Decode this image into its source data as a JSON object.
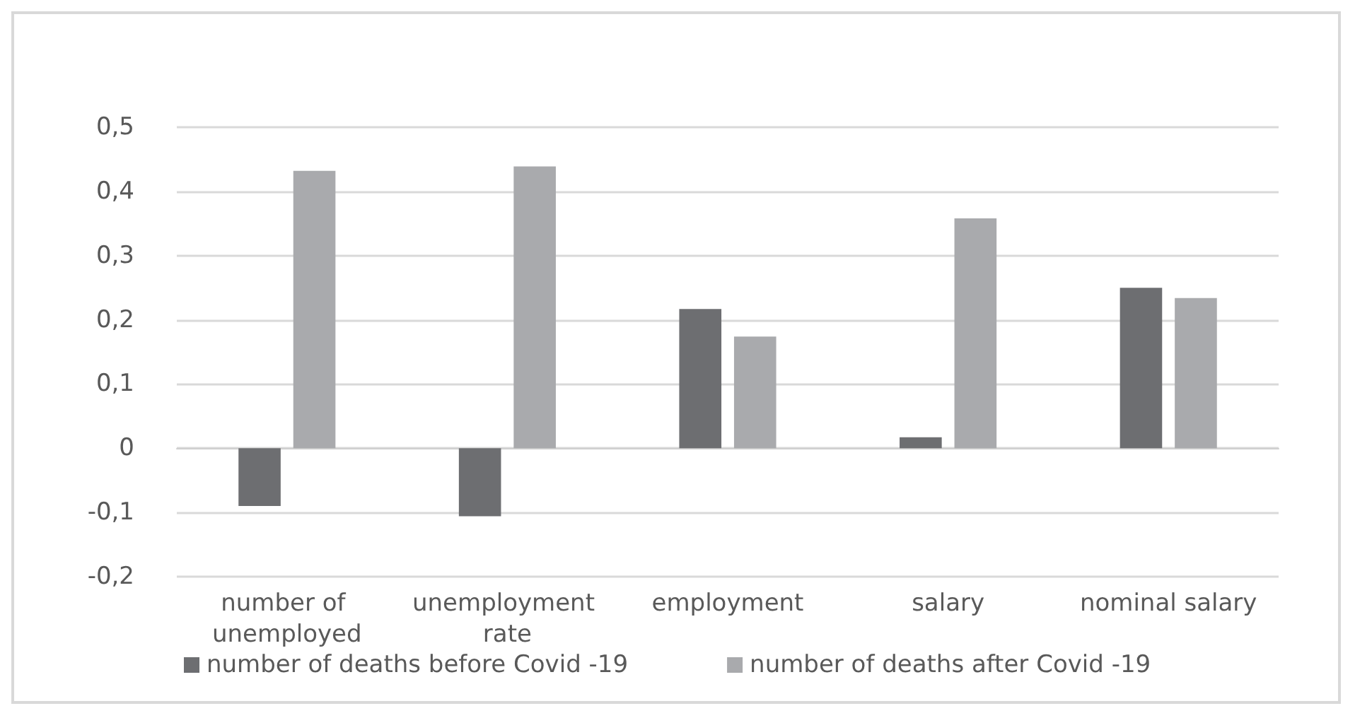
{
  "chart_data": {
    "type": "bar",
    "categories": [
      "number of unemployed",
      "unemployment rate",
      "employment",
      "salary",
      "nominal salary"
    ],
    "series": [
      {
        "name": "number of deaths before Covid -19",
        "color": "#6d6e71",
        "values": [
          -0.09,
          -0.106,
          0.217,
          0.017,
          0.25
        ]
      },
      {
        "name": "number of deaths after Covid -19",
        "color": "#a9aaad",
        "values": [
          0.432,
          0.439,
          0.174,
          0.358,
          0.234
        ]
      }
    ],
    "ylim": [
      -0.2,
      0.5
    ],
    "yticks": [
      {
        "value": -0.2,
        "label": "-0,2"
      },
      {
        "value": -0.1,
        "label": "-0,1"
      },
      {
        "value": 0,
        "label": "0"
      },
      {
        "value": 0.1,
        "label": "0,1"
      },
      {
        "value": 0.2,
        "label": "0,2"
      },
      {
        "value": 0.3,
        "label": "0,3"
      },
      {
        "value": 0.4,
        "label": "0,4"
      },
      {
        "value": 0.5,
        "label": "0,5"
      }
    ],
    "grid": true,
    "legend": "bottom"
  }
}
